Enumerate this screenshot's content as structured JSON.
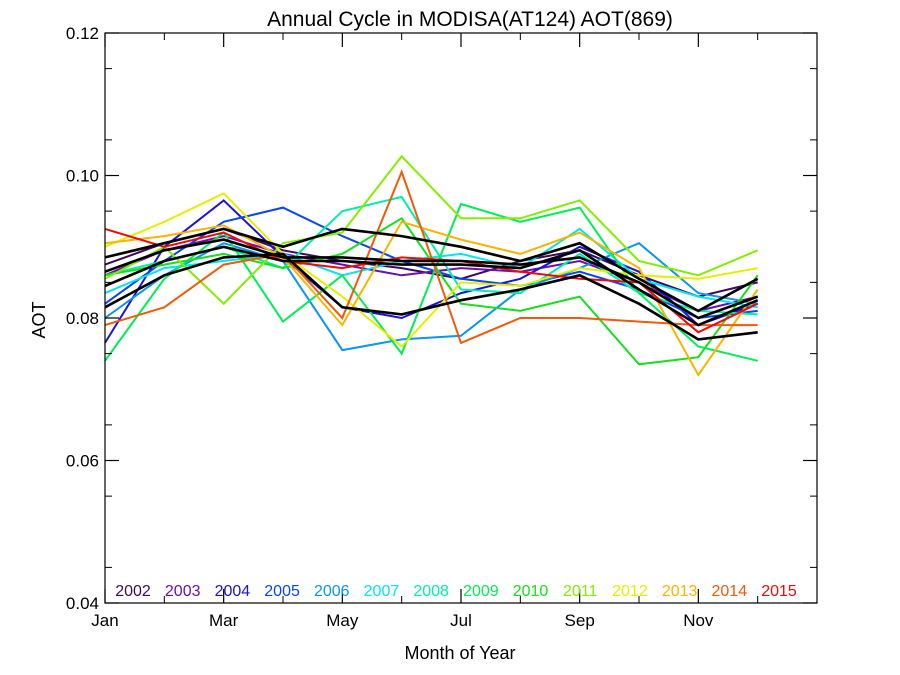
{
  "chart_data": {
    "type": "line",
    "title": "Annual Cycle in MODISA(AT124) AOT(869)",
    "xlabel": "Month of Year",
    "ylabel": "AOT",
    "xlim": [
      1,
      13
    ],
    "ylim": [
      0.04,
      0.12
    ],
    "x_ticks": [
      {
        "value": 1,
        "label": "Jan"
      },
      {
        "value": 3,
        "label": "Mar"
      },
      {
        "value": 5,
        "label": "May"
      },
      {
        "value": 7,
        "label": "Jul"
      },
      {
        "value": 9,
        "label": "Sep"
      },
      {
        "value": 11,
        "label": "Nov"
      }
    ],
    "y_ticks": [
      {
        "value": 0.04,
        "label": "0.04"
      },
      {
        "value": 0.06,
        "label": "0.06"
      },
      {
        "value": 0.08,
        "label": "0.08"
      },
      {
        "value": 0.1,
        "label": "0.10"
      },
      {
        "value": 0.12,
        "label": "0.12"
      }
    ],
    "legend_position": "bottom, inside plot",
    "x": [
      1,
      2,
      3,
      4,
      5,
      6,
      7,
      8,
      9,
      10,
      11,
      12
    ],
    "series": [
      {
        "name": "2002",
        "color": "#3b0a5e",
        "values": [
          0.0875,
          0.0905,
          0.0925,
          0.0895,
          0.088,
          0.087,
          0.0855,
          0.088,
          0.0895,
          0.086,
          0.083,
          0.085
        ]
      },
      {
        "name": "2003",
        "color": "#6a0fae",
        "values": [
          0.086,
          0.0895,
          0.0915,
          0.089,
          0.0875,
          0.086,
          0.087,
          0.0865,
          0.088,
          0.085,
          0.081,
          0.083
        ]
      },
      {
        "name": "2004",
        "color": "#1a12d8",
        "values": [
          0.0765,
          0.09,
          0.0965,
          0.0885,
          0.0815,
          0.08,
          0.0835,
          0.0855,
          0.09,
          0.0865,
          0.079,
          0.082
        ]
      },
      {
        "name": "2005",
        "color": "#0a45f0",
        "values": [
          0.082,
          0.088,
          0.0935,
          0.0955,
          0.0915,
          0.088,
          0.0855,
          0.0845,
          0.0865,
          0.084,
          0.08,
          0.081
        ]
      },
      {
        "name": "2006",
        "color": "#0a95ee",
        "values": [
          0.08,
          0.086,
          0.0905,
          0.088,
          0.0755,
          0.077,
          0.0775,
          0.084,
          0.087,
          0.0905,
          0.0835,
          0.082
        ]
      },
      {
        "name": "2007",
        "color": "#00e6ee",
        "values": [
          0.0835,
          0.087,
          0.088,
          0.089,
          0.086,
          0.088,
          0.089,
          0.087,
          0.0925,
          0.0855,
          0.083,
          0.0815
        ]
      },
      {
        "name": "2008",
        "color": "#00eea6",
        "values": [
          0.086,
          0.088,
          0.09,
          0.087,
          0.095,
          0.097,
          0.084,
          0.0835,
          0.089,
          0.0835,
          0.081,
          0.0805
        ]
      },
      {
        "name": "2009",
        "color": "#00ee55",
        "values": [
          0.074,
          0.0855,
          0.092,
          0.0795,
          0.086,
          0.075,
          0.096,
          0.0935,
          0.0955,
          0.0835,
          0.076,
          0.074
        ]
      },
      {
        "name": "2010",
        "color": "#15e01a",
        "values": [
          0.086,
          0.0875,
          0.089,
          0.087,
          0.089,
          0.094,
          0.082,
          0.081,
          0.083,
          0.0735,
          0.0745,
          0.086
        ]
      },
      {
        "name": "2011",
        "color": "#84ee00",
        "values": [
          0.0855,
          0.09,
          0.082,
          0.0905,
          0.092,
          0.1027,
          0.094,
          0.094,
          0.0965,
          0.088,
          0.086,
          0.0895
        ]
      },
      {
        "name": "2012",
        "color": "#e6ee00",
        "values": [
          0.09,
          0.0935,
          0.0975,
          0.089,
          0.083,
          0.076,
          0.085,
          0.0845,
          0.087,
          0.086,
          0.0855,
          0.087
        ]
      },
      {
        "name": "2013",
        "color": "#f8b400",
        "values": [
          0.0905,
          0.0915,
          0.093,
          0.0885,
          0.079,
          0.0935,
          0.091,
          0.089,
          0.092,
          0.087,
          0.072,
          0.084
        ]
      },
      {
        "name": "2014",
        "color": "#f05a0a",
        "values": [
          0.079,
          0.0815,
          0.0875,
          0.089,
          0.08,
          0.1005,
          0.0765,
          0.08,
          0.08,
          0.0795,
          0.079,
          0.079
        ]
      },
      {
        "name": "2015",
        "color": "#ee0a0a",
        "values": [
          0.0925,
          0.09,
          0.092,
          0.088,
          0.087,
          0.0885,
          0.088,
          0.0865,
          0.0855,
          0.085,
          0.078,
          0.082
        ]
      },
      {
        "name": "",
        "color": "#000000",
        "values": [
          0.0885,
          0.0905,
          0.0925,
          0.09,
          0.0925,
          0.0915,
          0.09,
          0.088,
          0.0905,
          0.0855,
          0.081,
          0.0855
        ]
      },
      {
        "name": "",
        "color": "#000000",
        "values": [
          0.0865,
          0.0895,
          0.091,
          0.0885,
          0.0885,
          0.088,
          0.088,
          0.0875,
          0.0885,
          0.085,
          0.08,
          0.083
        ]
      },
      {
        "name": "",
        "color": "#000000",
        "values": [
          0.0845,
          0.088,
          0.09,
          0.088,
          0.088,
          0.0875,
          0.0875,
          0.087,
          0.0895,
          0.084,
          0.079,
          0.0825
        ]
      },
      {
        "name": "",
        "color": "#000000",
        "values": [
          0.0815,
          0.086,
          0.0885,
          0.089,
          0.0815,
          0.0805,
          0.0825,
          0.084,
          0.086,
          0.082,
          0.077,
          0.078
        ]
      }
    ]
  }
}
